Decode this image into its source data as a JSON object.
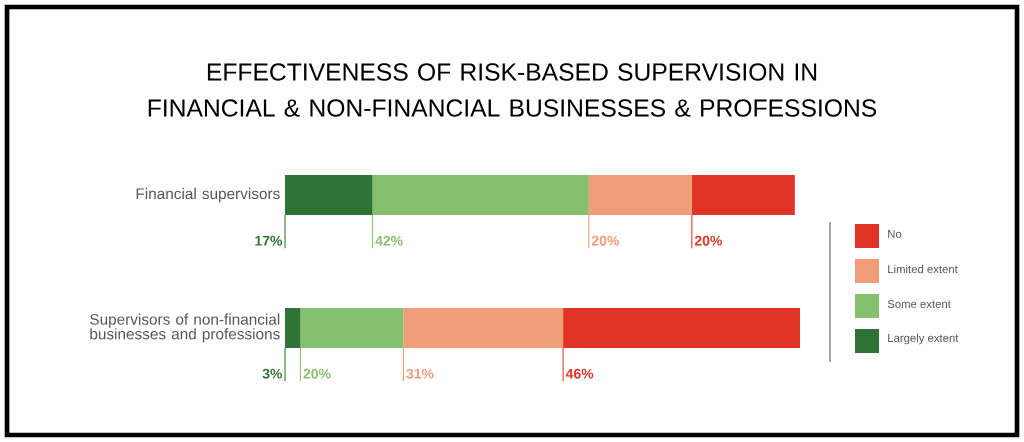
{
  "chart_data": {
    "type": "bar",
    "orientation": "horizontal",
    "stacked": true,
    "title": "EFFECTIVENESS OF RISK-BASED SUPERVISION IN FINANCIAL & NON-FINANCIAL BUSINESSES & PROFESSIONS",
    "categories": [
      "Financial supervisors",
      "Supervisors of non-financial businesses and professions"
    ],
    "series": [
      {
        "name": "Largely extent",
        "color": "#2e7535",
        "values": [
          17,
          3
        ],
        "value_labels": [
          "17%",
          "3%"
        ]
      },
      {
        "name": "Some extent",
        "color": "#86c06e",
        "values": [
          42,
          20
        ],
        "value_labels": [
          "42%",
          "20%"
        ]
      },
      {
        "name": "Limited extent",
        "color": "#ef9d78",
        "values": [
          20,
          31
        ],
        "value_labels": [
          "20%",
          "31%"
        ]
      },
      {
        "name": "No",
        "color": "#e03526",
        "values": [
          20,
          46
        ],
        "value_labels": [
          "20%",
          "46%"
        ]
      }
    ],
    "legend": "right"
  }
}
